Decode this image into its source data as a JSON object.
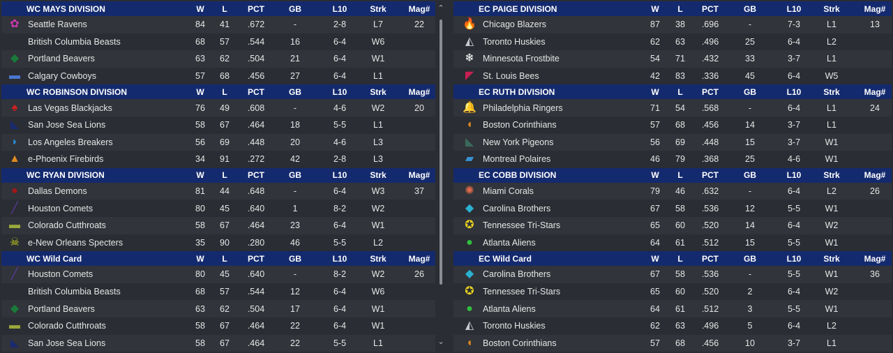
{
  "columns": [
    "W",
    "L",
    "PCT",
    "GB",
    "L10",
    "Strk",
    "Mag#"
  ],
  "left": [
    {
      "title": "WC MAYS DIVISION",
      "teams": [
        {
          "icon": "raven-icon",
          "glyph": "✿",
          "color": "#c83ab0",
          "name": "Seattle Ravens",
          "w": "84",
          "l": "41",
          "pct": ".672",
          "gb": "-",
          "l10": "2-8",
          "strk": "L7",
          "mag": "22"
        },
        {
          "icon": "beast-icon",
          "glyph": "",
          "color": "#333333",
          "name": "British Columbia Beasts",
          "w": "68",
          "l": "57",
          "pct": ".544",
          "gb": "16",
          "l10": "6-4",
          "strk": "W6",
          "mag": ""
        },
        {
          "icon": "beaver-icon",
          "glyph": "◆",
          "color": "#1b7a3a",
          "name": "Portland Beavers",
          "w": "63",
          "l": "62",
          "pct": ".504",
          "gb": "21",
          "l10": "6-4",
          "strk": "W1",
          "mag": ""
        },
        {
          "icon": "cowboy-hat-icon",
          "glyph": "▬",
          "color": "#4a78d0",
          "name": "Calgary Cowboys",
          "w": "57",
          "l": "68",
          "pct": ".456",
          "gb": "27",
          "l10": "6-4",
          "strk": "L1",
          "mag": ""
        }
      ]
    },
    {
      "title": "WC ROBINSON DIVISION",
      "teams": [
        {
          "icon": "blackjack-icon",
          "glyph": "♠",
          "color": "#d02020",
          "name": "Las Vegas Blackjacks",
          "w": "76",
          "l": "49",
          "pct": ".608",
          "gb": "-",
          "l10": "4-6",
          "strk": "W2",
          "mag": "20"
        },
        {
          "icon": "sea-lion-icon",
          "glyph": "◣",
          "color": "#1a2a70",
          "name": "San Jose Sea Lions",
          "w": "58",
          "l": "67",
          "pct": ".464",
          "gb": "18",
          "l10": "5-5",
          "strk": "L1",
          "mag": ""
        },
        {
          "icon": "wave-icon",
          "glyph": "◗",
          "color": "#2a8ad0",
          "name": "Los Angeles Breakers",
          "w": "56",
          "l": "69",
          "pct": ".448",
          "gb": "20",
          "l10": "4-6",
          "strk": "L3",
          "mag": ""
        },
        {
          "icon": "firebird-icon",
          "glyph": "▲",
          "color": "#e08a20",
          "name": "e-Phoenix Firebirds",
          "w": "34",
          "l": "91",
          "pct": ".272",
          "gb": "42",
          "l10": "2-8",
          "strk": "L3",
          "mag": ""
        }
      ]
    },
    {
      "title": "WC RYAN DIVISION",
      "teams": [
        {
          "icon": "demon-icon",
          "glyph": "●",
          "color": "#a01818",
          "name": "Dallas Demons",
          "w": "81",
          "l": "44",
          "pct": ".648",
          "gb": "-",
          "l10": "6-4",
          "strk": "W3",
          "mag": "37"
        },
        {
          "icon": "comet-icon",
          "glyph": "╱",
          "color": "#5a3a9a",
          "name": "Houston Comets",
          "w": "80",
          "l": "45",
          "pct": ".640",
          "gb": "1",
          "l10": "8-2",
          "strk": "W2",
          "mag": ""
        },
        {
          "icon": "cutthroat-fish-icon",
          "glyph": "▬",
          "color": "#9aa83a",
          "name": "Colorado Cutthroats",
          "w": "58",
          "l": "67",
          "pct": ".464",
          "gb": "23",
          "l10": "6-4",
          "strk": "W1",
          "mag": ""
        },
        {
          "icon": "specter-skull-icon",
          "glyph": "☠",
          "color": "#c8d020",
          "name": "e-New Orleans Specters",
          "w": "35",
          "l": "90",
          "pct": ".280",
          "gb": "46",
          "l10": "5-5",
          "strk": "L2",
          "mag": ""
        }
      ]
    },
    {
      "title": "WC  Wild Card",
      "teams": [
        {
          "icon": "comet-icon",
          "glyph": "╱",
          "color": "#5a3a9a",
          "name": "Houston Comets",
          "w": "80",
          "l": "45",
          "pct": ".640",
          "gb": "-",
          "l10": "8-2",
          "strk": "W2",
          "mag": "26"
        },
        {
          "icon": "beast-icon",
          "glyph": "",
          "color": "#333333",
          "name": "British Columbia Beasts",
          "w": "68",
          "l": "57",
          "pct": ".544",
          "gb": "12",
          "l10": "6-4",
          "strk": "W6",
          "mag": ""
        },
        {
          "icon": "beaver-icon",
          "glyph": "◆",
          "color": "#1b7a3a",
          "name": "Portland Beavers",
          "w": "63",
          "l": "62",
          "pct": ".504",
          "gb": "17",
          "l10": "6-4",
          "strk": "W1",
          "mag": ""
        },
        {
          "icon": "cutthroat-fish-icon",
          "glyph": "▬",
          "color": "#9aa83a",
          "name": "Colorado Cutthroats",
          "w": "58",
          "l": "67",
          "pct": ".464",
          "gb": "22",
          "l10": "6-4",
          "strk": "W1",
          "mag": ""
        },
        {
          "icon": "sea-lion-icon",
          "glyph": "◣",
          "color": "#1a2a70",
          "name": "San Jose Sea Lions",
          "w": "58",
          "l": "67",
          "pct": ".464",
          "gb": "22",
          "l10": "5-5",
          "strk": "L1",
          "mag": ""
        }
      ]
    }
  ],
  "right": [
    {
      "title": "EC PAIGE DIVISION",
      "teams": [
        {
          "icon": "flame-icon",
          "glyph": "🔥",
          "color": "#e05a20",
          "name": "Chicago Blazers",
          "w": "87",
          "l": "38",
          "pct": ".696",
          "gb": "-",
          "l10": "7-3",
          "strk": "L1",
          "mag": "13"
        },
        {
          "icon": "husky-icon",
          "glyph": "◭",
          "color": "#c8c8d0",
          "name": "Toronto Huskies",
          "w": "62",
          "l": "63",
          "pct": ".496",
          "gb": "25",
          "l10": "6-4",
          "strk": "L2",
          "mag": ""
        },
        {
          "icon": "snowflake-icon",
          "glyph": "❄",
          "color": "#ffffff",
          "name": "Minnesota Frostbite",
          "w": "54",
          "l": "71",
          "pct": ".432",
          "gb": "33",
          "l10": "3-7",
          "strk": "L1",
          "mag": ""
        },
        {
          "icon": "bee-icon",
          "glyph": "◤",
          "color": "#c82050",
          "name": "St. Louis Bees",
          "w": "42",
          "l": "83",
          "pct": ".336",
          "gb": "45",
          "l10": "6-4",
          "strk": "W5",
          "mag": ""
        }
      ]
    },
    {
      "title": "EC RUTH DIVISION",
      "teams": [
        {
          "icon": "liberty-bell-icon",
          "glyph": "🔔",
          "color": "#c89a50",
          "name": "Philadelphia Ringers",
          "w": "71",
          "l": "54",
          "pct": ".568",
          "gb": "-",
          "l10": "6-4",
          "strk": "L1",
          "mag": "24"
        },
        {
          "icon": "spartan-helmet-icon",
          "glyph": "◖",
          "color": "#e08a20",
          "name": "Boston Corinthians",
          "w": "57",
          "l": "68",
          "pct": ".456",
          "gb": "14",
          "l10": "3-7",
          "strk": "L1",
          "mag": ""
        },
        {
          "icon": "pigeon-icon",
          "glyph": "◣",
          "color": "#3a6a5a",
          "name": "New York Pigeons",
          "w": "56",
          "l": "69",
          "pct": ".448",
          "gb": "15",
          "l10": "3-7",
          "strk": "W1",
          "mag": ""
        },
        {
          "icon": "polar-bear-icon",
          "glyph": "▰",
          "color": "#3a90d0",
          "name": "Montreal Polaires",
          "w": "46",
          "l": "79",
          "pct": ".368",
          "gb": "25",
          "l10": "4-6",
          "strk": "W1",
          "mag": ""
        }
      ]
    },
    {
      "title": "EC COBB DIVISION",
      "teams": [
        {
          "icon": "coral-icon",
          "glyph": "✺",
          "color": "#e06a4a",
          "name": "Miami Corals",
          "w": "79",
          "l": "46",
          "pct": ".632",
          "gb": "-",
          "l10": "6-4",
          "strk": "L2",
          "mag": "26"
        },
        {
          "icon": "diamond-icon",
          "glyph": "◆",
          "color": "#2ab0d0",
          "name": "Carolina Brothers",
          "w": "67",
          "l": "58",
          "pct": ".536",
          "gb": "12",
          "l10": "5-5",
          "strk": "W1",
          "mag": ""
        },
        {
          "icon": "tri-stars-icon",
          "glyph": "✪",
          "color": "#e8d020",
          "name": "Tennessee Tri-Stars",
          "w": "65",
          "l": "60",
          "pct": ".520",
          "gb": "14",
          "l10": "6-4",
          "strk": "W2",
          "mag": ""
        },
        {
          "icon": "alien-head-icon",
          "glyph": "●",
          "color": "#30c040",
          "name": "Atlanta Aliens",
          "w": "64",
          "l": "61",
          "pct": ".512",
          "gb": "15",
          "l10": "5-5",
          "strk": "W1",
          "mag": ""
        }
      ]
    },
    {
      "title": "EC  Wild Card",
      "teams": [
        {
          "icon": "diamond-icon",
          "glyph": "◆",
          "color": "#2ab0d0",
          "name": "Carolina Brothers",
          "w": "67",
          "l": "58",
          "pct": ".536",
          "gb": "-",
          "l10": "5-5",
          "strk": "W1",
          "mag": "36"
        },
        {
          "icon": "tri-stars-icon",
          "glyph": "✪",
          "color": "#e8d020",
          "name": "Tennessee Tri-Stars",
          "w": "65",
          "l": "60",
          "pct": ".520",
          "gb": "2",
          "l10": "6-4",
          "strk": "W2",
          "mag": ""
        },
        {
          "icon": "alien-head-icon",
          "glyph": "●",
          "color": "#30c040",
          "name": "Atlanta Aliens",
          "w": "64",
          "l": "61",
          "pct": ".512",
          "gb": "3",
          "l10": "5-5",
          "strk": "W1",
          "mag": ""
        },
        {
          "icon": "husky-icon",
          "glyph": "◭",
          "color": "#c8c8d0",
          "name": "Toronto Huskies",
          "w": "62",
          "l": "63",
          "pct": ".496",
          "gb": "5",
          "l10": "6-4",
          "strk": "L2",
          "mag": ""
        },
        {
          "icon": "spartan-helmet-icon",
          "glyph": "◖",
          "color": "#e08a20",
          "name": "Boston Corinthians",
          "w": "57",
          "l": "68",
          "pct": ".456",
          "gb": "10",
          "l10": "3-7",
          "strk": "L1",
          "mag": ""
        }
      ]
    }
  ]
}
